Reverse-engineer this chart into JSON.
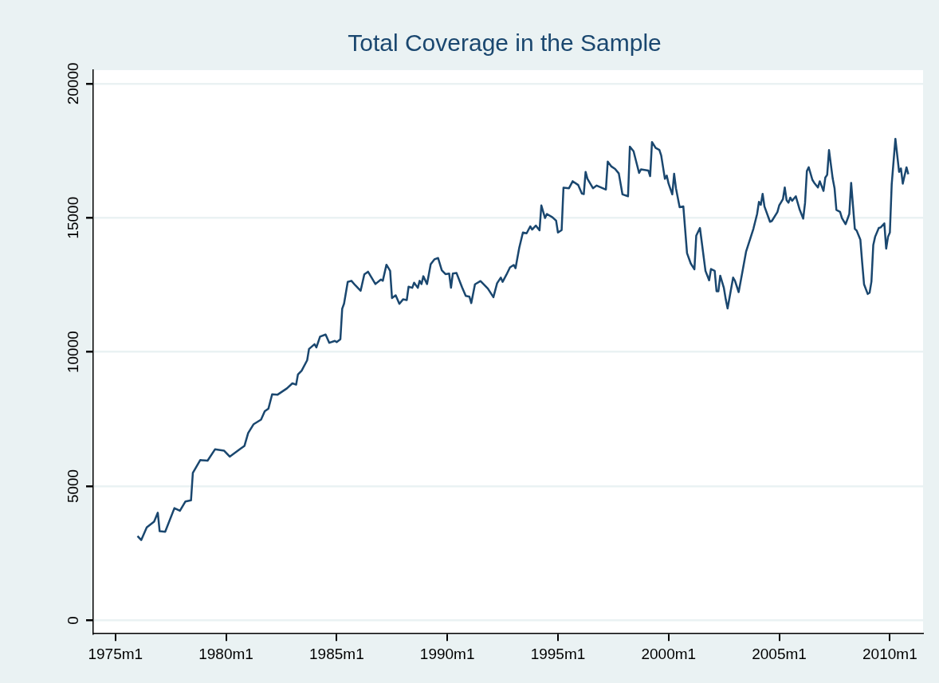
{
  "chart_data": {
    "type": "line",
    "title": "Total Coverage in the Sample",
    "x": [
      "1976-01",
      "1976-03",
      "1976-06",
      "1976-10",
      "1976-12",
      "1977-01",
      "1977-04",
      "1977-09",
      "1977-12",
      "1978-03",
      "1978-06",
      "1978-07",
      "1978-11",
      "1979-03",
      "1979-07",
      "1979-12",
      "1980-03",
      "1980-09",
      "1980-11",
      "1981-01",
      "1981-04",
      "1981-08",
      "1981-10",
      "1981-12",
      "1982-02",
      "1982-05",
      "1982-10",
      "1983-01",
      "1983-03",
      "1983-04",
      "1983-06",
      "1983-09",
      "1983-10",
      "1984-01",
      "1984-02",
      "1984-04",
      "1984-07",
      "1984-09",
      "1984-12",
      "1985-01",
      "1985-03",
      "1985-04",
      "1985-05",
      "1985-07",
      "1985-09",
      "1985-11",
      "1986-02",
      "1986-04",
      "1986-06",
      "1986-10",
      "1987-01",
      "1987-02",
      "1987-04",
      "1987-06",
      "1987-07",
      "1987-09",
      "1987-11",
      "1988-01",
      "1988-03",
      "1988-04",
      "1988-06",
      "1988-07",
      "1988-09",
      "1988-10",
      "1988-11",
      "1988-12",
      "1989-02",
      "1989-04",
      "1989-06",
      "1989-08",
      "1989-10",
      "1989-12",
      "1990-02",
      "1990-03",
      "1990-04",
      "1990-06",
      "1990-09",
      "1990-11",
      "1991-01",
      "1991-02",
      "1991-04",
      "1991-07",
      "1991-11",
      "1992-02",
      "1992-04",
      "1992-06",
      "1992-07",
      "1992-09",
      "1992-11",
      "1993-01",
      "1993-02",
      "1993-04",
      "1993-06",
      "1993-08",
      "1993-10",
      "1993-11",
      "1994-01",
      "1994-03",
      "1994-04",
      "1994-06",
      "1994-07",
      "1994-10",
      "1994-12",
      "1995-01",
      "1995-03",
      "1995-04",
      "1995-07",
      "1995-09",
      "1995-12",
      "1996-02",
      "1996-03",
      "1996-04",
      "1996-05",
      "1996-08",
      "1996-10",
      "1997-03",
      "1997-04",
      "1997-06",
      "1997-08",
      "1997-10",
      "1997-12",
      "1998-03",
      "1998-04",
      "1998-06",
      "1998-09",
      "1998-10",
      "1999-02",
      "1999-03",
      "1999-04",
      "1999-06",
      "1999-08",
      "1999-09",
      "1999-11",
      "1999-12",
      "2000-01",
      "2000-03",
      "2000-04",
      "2000-05",
      "2000-07",
      "2000-09",
      "2000-11",
      "2001-01",
      "2001-03",
      "2001-04",
      "2001-06",
      "2001-09",
      "2001-11",
      "2001-12",
      "2002-02",
      "2002-03",
      "2002-04",
      "2002-05",
      "2002-07",
      "2002-08",
      "2002-09",
      "2002-12",
      "2003-01",
      "2003-03",
      "2003-05",
      "2003-07",
      "2003-11",
      "2004-01",
      "2004-02",
      "2004-03",
      "2004-04",
      "2004-05",
      "2004-08",
      "2004-09",
      "2004-12",
      "2005-01",
      "2005-03",
      "2005-04",
      "2005-05",
      "2005-06",
      "2005-07",
      "2005-08",
      "2005-10",
      "2005-12",
      "2006-02",
      "2006-03",
      "2006-04",
      "2006-05",
      "2006-07",
      "2006-08",
      "2006-10",
      "2006-11",
      "2007-01",
      "2007-02",
      "2007-03",
      "2007-04",
      "2007-06",
      "2007-07",
      "2007-08",
      "2007-10",
      "2007-11",
      "2008-01",
      "2008-03",
      "2008-04",
      "2008-06",
      "2008-07",
      "2008-09",
      "2008-10",
      "2008-11",
      "2009-01",
      "2009-02",
      "2009-03",
      "2009-04",
      "2009-05",
      "2009-07",
      "2009-08",
      "2009-10",
      "2009-11",
      "2009-12",
      "2010-01",
      "2010-02",
      "2010-04",
      "2010-06",
      "2010-07",
      "2010-08",
      "2010-10",
      "2010-11"
    ],
    "series": [
      {
        "color": "#1a476f",
        "values": [
          3140,
          2990,
          3460,
          3680,
          4010,
          3320,
          3300,
          4180,
          4080,
          4430,
          4470,
          5490,
          5970,
          5950,
          6370,
          6320,
          6100,
          6400,
          6500,
          6980,
          7310,
          7480,
          7790,
          7890,
          8420,
          8410,
          8640,
          8830,
          8780,
          9160,
          9300,
          9690,
          10110,
          10290,
          10170,
          10570,
          10650,
          10340,
          10410,
          10370,
          10470,
          11610,
          11800,
          12610,
          12650,
          12490,
          12280,
          12890,
          12990,
          12530,
          12700,
          12650,
          13250,
          13020,
          12010,
          12110,
          11790,
          11960,
          11930,
          12430,
          12390,
          12580,
          12390,
          12650,
          12530,
          12820,
          12530,
          13270,
          13450,
          13500,
          13040,
          12900,
          12920,
          12390,
          12920,
          12940,
          12410,
          12090,
          12060,
          11820,
          12520,
          12640,
          12360,
          12040,
          12560,
          12770,
          12610,
          12870,
          13150,
          13240,
          13120,
          13880,
          14450,
          14420,
          14680,
          14560,
          14710,
          14530,
          15460,
          14990,
          15140,
          15020,
          14890,
          14450,
          14540,
          16120,
          16100,
          16360,
          16220,
          15900,
          15880,
          16710,
          16450,
          16100,
          16200,
          16050,
          17090,
          16910,
          16820,
          16650,
          15870,
          15800,
          17650,
          17480,
          16670,
          16800,
          16760,
          16550,
          17820,
          17600,
          17530,
          17320,
          16450,
          16570,
          16270,
          15870,
          16640,
          16100,
          15390,
          15420,
          13680,
          13300,
          13080,
          14330,
          14620,
          13020,
          12670,
          13090,
          13020,
          12260,
          12260,
          12840,
          12380,
          11960,
          11620,
          12770,
          12650,
          12230,
          12970,
          13730,
          14590,
          15140,
          15590,
          15480,
          15890,
          15420,
          14850,
          14880,
          15210,
          15460,
          15690,
          16130,
          15650,
          15560,
          15750,
          15630,
          15800,
          15320,
          14970,
          15550,
          16740,
          16880,
          16410,
          16300,
          16130,
          16360,
          16000,
          16500,
          16600,
          17520,
          16460,
          16100,
          15290,
          15220,
          14990,
          14760,
          15140,
          16300,
          14590,
          14520,
          14180,
          13320,
          12520,
          12160,
          12210,
          12620,
          13980,
          14290,
          14620,
          14640,
          14790,
          13850,
          14290,
          14450,
          16250,
          17940,
          16710,
          16840,
          16270,
          16880,
          16620
        ]
      }
    ],
    "xlim": [
      "1974-01",
      "2011-07"
    ],
    "xticks": [
      {
        "value": "1975-01",
        "label": "1975m1"
      },
      {
        "value": "1980-01",
        "label": "1980m1"
      },
      {
        "value": "1985-01",
        "label": "1985m1"
      },
      {
        "value": "1990-01",
        "label": "1990m1"
      },
      {
        "value": "1995-01",
        "label": "1995m1"
      },
      {
        "value": "2000-01",
        "label": "2000m1"
      },
      {
        "value": "2005-01",
        "label": "2005m1"
      },
      {
        "value": "2010-01",
        "label": "2010m1"
      }
    ],
    "ylim": [
      -500,
      20500
    ],
    "yticks": [
      0,
      5000,
      10000,
      15000,
      20000
    ],
    "grid": "y"
  }
}
